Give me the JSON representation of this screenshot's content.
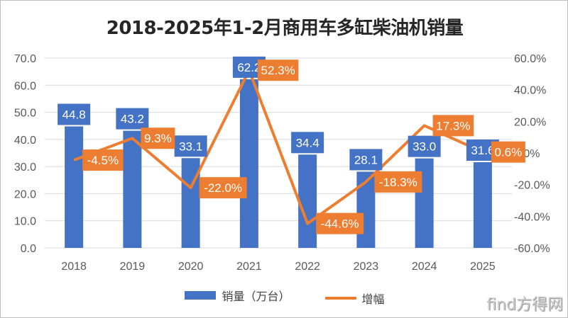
{
  "chart_data": {
    "type": "bar+line",
    "title": "2018-2025年1-2月商用车多缸柴油机销量",
    "categories": [
      "2018",
      "2019",
      "2020",
      "2021",
      "2022",
      "2023",
      "2024",
      "2025"
    ],
    "series": [
      {
        "name": "销量（万台）",
        "type": "bar",
        "axis": "left",
        "values": [
          44.8,
          43.2,
          33.1,
          62.2,
          34.4,
          28.1,
          33.0,
          31.6
        ],
        "labels": [
          "44.8",
          "43.2",
          "33.1",
          "62.2",
          "34.4",
          "28.1",
          "33.0",
          "31.6"
        ],
        "color": "#4472c4"
      },
      {
        "name": "增幅",
        "type": "line",
        "axis": "right",
        "values": [
          -4.5,
          9.3,
          -22.0,
          52.3,
          -44.6,
          -18.3,
          17.3,
          0.6
        ],
        "labels": [
          "-4.5%",
          "9.3%",
          "-22.0%",
          "52.3%",
          "-44.6%",
          "-18.3%",
          "17.3%",
          "0.6%"
        ],
        "color": "#ed7d31"
      }
    ],
    "left_axis": {
      "ylim": [
        0,
        70
      ],
      "ticks": [
        "0.0",
        "10.0",
        "20.0",
        "30.0",
        "40.0",
        "50.0",
        "60.0",
        "70.0"
      ]
    },
    "right_axis": {
      "ylim": [
        -60,
        60
      ],
      "ticks": [
        "-60.0%",
        "-40.0%",
        "-20.0%",
        "0.0%",
        "20.0%",
        "40.0%",
        "60.0%"
      ]
    },
    "grid": true,
    "legend": "bottom"
  },
  "watermark": "find方得网"
}
